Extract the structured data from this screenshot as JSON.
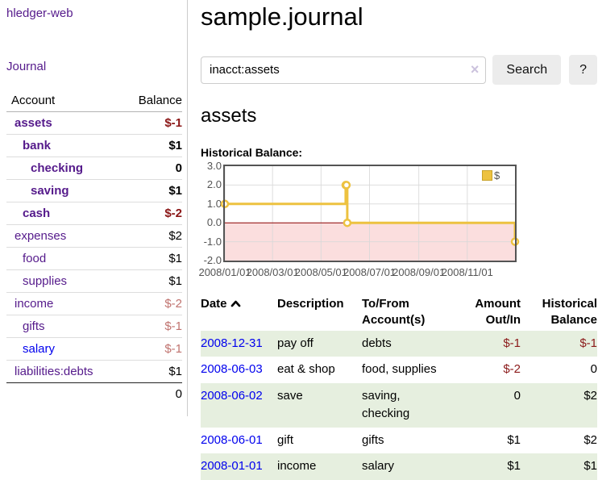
{
  "app": {
    "brand": "hledger-web",
    "nav_journal": "Journal"
  },
  "header": {
    "title": "sample.journal"
  },
  "search": {
    "value": "inacct:assets",
    "clear_label": "×",
    "button_label": "Search",
    "help_label": "?"
  },
  "main": {
    "account_heading": "assets",
    "chart_label": "Historical Balance:"
  },
  "sidebar": {
    "headers": {
      "account": "Account",
      "balance": "Balance"
    },
    "accounts": [
      {
        "name": "assets",
        "balance": "$-1",
        "indent": 1,
        "bold": true,
        "tone": "neg-strong",
        "link": "purple"
      },
      {
        "name": "bank",
        "balance": "$1",
        "indent": 2,
        "bold": true,
        "tone": "",
        "link": "purple"
      },
      {
        "name": "checking",
        "balance": "0",
        "indent": 3,
        "bold": true,
        "tone": "",
        "link": "purple"
      },
      {
        "name": "saving",
        "balance": "$1",
        "indent": 3,
        "bold": true,
        "tone": "",
        "link": "purple"
      },
      {
        "name": "cash",
        "balance": "$-2",
        "indent": 2,
        "bold": true,
        "tone": "neg-strong",
        "link": "purple"
      },
      {
        "name": "expenses",
        "balance": "$2",
        "indent": 1,
        "bold": false,
        "tone": "",
        "link": "purple"
      },
      {
        "name": "food",
        "balance": "$1",
        "indent": 2,
        "bold": false,
        "tone": "",
        "link": "purple"
      },
      {
        "name": "supplies",
        "balance": "$1",
        "indent": 2,
        "bold": false,
        "tone": "",
        "link": "purple"
      },
      {
        "name": "income",
        "balance": "$-2",
        "indent": 1,
        "bold": false,
        "tone": "neg-soft",
        "link": "purple"
      },
      {
        "name": "gifts",
        "balance": "$-1",
        "indent": 2,
        "bold": false,
        "tone": "neg-soft",
        "link": "purple"
      },
      {
        "name": "salary",
        "balance": "$-1",
        "indent": 2,
        "bold": false,
        "tone": "neg-soft",
        "link": "blue"
      },
      {
        "name": "liabilities:debts",
        "balance": "$1",
        "indent": 1,
        "bold": false,
        "tone": "",
        "link": "purple"
      }
    ],
    "total": "0"
  },
  "chart_data": {
    "type": "line",
    "title": "Historical Balance",
    "step": true,
    "series": [
      {
        "name": "$",
        "color": "#edc240",
        "points": [
          [
            "2008-01-01",
            1
          ],
          [
            "2008-06-01",
            2
          ],
          [
            "2008-06-02",
            2
          ],
          [
            "2008-06-03",
            0
          ],
          [
            "2008-12-31",
            -1
          ]
        ]
      }
    ],
    "xlim": [
      "2008-01-01",
      "2008-12-31"
    ],
    "ylim": [
      -2,
      3
    ],
    "x_ticks": [
      "2008/01/01",
      "2008/03/01",
      "2008/05/01",
      "2008/07/01",
      "2008/09/01",
      "2008/11/01"
    ],
    "y_ticks": [
      "-2.0",
      "-1.0",
      "0.0",
      "1.0",
      "2.0",
      "3.0"
    ],
    "legend": {
      "label": "$",
      "position": "top-right"
    },
    "grid": true,
    "negative_region_color": "#fbdede",
    "zero_line_color": "#8b0000",
    "border_color": "#545454"
  },
  "register": {
    "headers": [
      {
        "line1": "Date",
        "line2": "",
        "align": "left",
        "sorted": "asc"
      },
      {
        "line1": "Description",
        "line2": "",
        "align": "left"
      },
      {
        "line1": "To/From",
        "line2": "Account(s)",
        "align": "left"
      },
      {
        "line1": "Amount",
        "line2": "Out/In",
        "align": "right"
      },
      {
        "line1": "Historical",
        "line2": "Balance",
        "align": "right"
      }
    ],
    "rows": [
      {
        "date": "2008-12-31",
        "description": "pay off",
        "accounts": "debts",
        "amount": "$-1",
        "amount_negative": true,
        "balance": "$-1",
        "balance_negative": true
      },
      {
        "date": "2008-06-03",
        "description": "eat & shop",
        "accounts": "food, supplies",
        "amount": "$-2",
        "amount_negative": true,
        "balance": "0",
        "balance_negative": false
      },
      {
        "date": "2008-06-02",
        "description": "save",
        "accounts": "saving, checking",
        "amount": "0",
        "amount_negative": false,
        "balance": "$2",
        "balance_negative": false
      },
      {
        "date": "2008-06-01",
        "description": "gift",
        "accounts": "gifts",
        "amount": "$1",
        "amount_negative": false,
        "balance": "$2",
        "balance_negative": false
      },
      {
        "date": "2008-01-01",
        "description": "income",
        "accounts": "salary",
        "amount": "$1",
        "amount_negative": false,
        "balance": "$1",
        "balance_negative": false
      }
    ]
  },
  "colors": {
    "link_visited_purple": "#551a8b",
    "link_blue": "#0000ee",
    "negative_strong": "#8b1717",
    "negative_soft": "#c0736f",
    "negative_table": "#8b1a1a",
    "row_stripe_green": "#e6efdf",
    "series_gold": "#edc240",
    "chart_negative_region": "#fbdede",
    "chart_zero_line": "#8b0000",
    "button_background": "#ececec"
  }
}
